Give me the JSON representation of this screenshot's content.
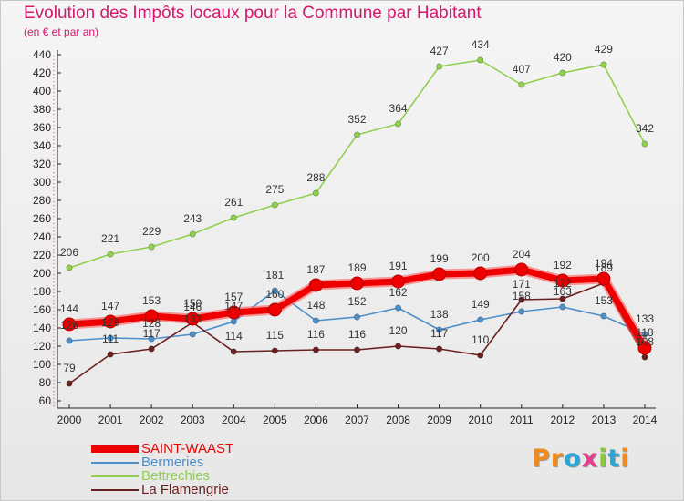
{
  "title": "Evolution des Impôts locaux pour la Commune par Habitant",
  "subtitle": "(en € et par an)",
  "logo": {
    "text": "Proxiti",
    "letters": [
      "P",
      "r",
      "o",
      "x",
      "i",
      "t",
      "i"
    ],
    "colors": [
      "#f08a1c",
      "#f08a1c",
      "#2aa7d6",
      "#e83a8a",
      "#8cc63f",
      "#2aa7d6",
      "#f08a1c"
    ]
  },
  "chart_data": {
    "type": "line",
    "title": "Evolution des Impôts locaux pour la Commune par Habitant",
    "subtitle": "(en € et par an)",
    "x": [
      "2000",
      "2001",
      "2002",
      "2003",
      "2004",
      "2005",
      "2006",
      "2007",
      "2008",
      "2009",
      "2010",
      "2011",
      "2012",
      "2013",
      "2014"
    ],
    "ylim": [
      60,
      440
    ],
    "yticks": [
      60,
      80,
      100,
      120,
      140,
      160,
      180,
      200,
      220,
      240,
      260,
      280,
      300,
      320,
      340,
      360,
      380,
      400,
      420,
      440
    ],
    "grid": false,
    "legend_position": "bottom-left",
    "series": [
      {
        "name": "SAINT-WAAST",
        "color": "#ee0000",
        "values": [
          144,
          147,
          153,
          150,
          157,
          160,
          187,
          189,
          191,
          199,
          200,
          204,
          192,
          194,
          118
        ],
        "labels": [
          "144",
          "147",
          "153",
          "150",
          "157",
          "160",
          "187",
          "189",
          "191",
          "199",
          "200",
          "204",
          "192",
          "194",
          "118"
        ]
      },
      {
        "name": "Bermeries",
        "color": "#4d8fc9",
        "values": [
          126,
          129,
          128,
          133,
          147,
          181,
          148,
          152,
          162,
          138,
          149,
          158,
          163,
          153,
          133
        ],
        "labels": [
          "126",
          "129",
          "128",
          "133",
          "147",
          "181",
          "148",
          "152",
          "162",
          "138",
          "149",
          "158",
          "163",
          "153",
          "133"
        ]
      },
      {
        "name": "Bettrechies",
        "color": "#8fd04d",
        "values": [
          206,
          221,
          229,
          243,
          261,
          275,
          288,
          352,
          364,
          427,
          434,
          407,
          420,
          429,
          342
        ],
        "labels": [
          "206",
          "221",
          "229",
          "243",
          "261",
          "275",
          "288",
          "352",
          "364",
          "427",
          "434",
          "407",
          "420",
          "429",
          "342"
        ]
      },
      {
        "name": "La Flamengrie",
        "color": "#6b2020",
        "values": [
          79,
          111,
          117,
          146,
          114,
          115,
          116,
          116,
          120,
          117,
          110,
          171,
          172,
          189,
          108
        ],
        "labels": [
          "79",
          "111",
          "117",
          "146",
          "114",
          "115",
          "116",
          "116",
          "120",
          "117",
          "110",
          "171",
          "172",
          "189",
          "108"
        ]
      }
    ]
  }
}
